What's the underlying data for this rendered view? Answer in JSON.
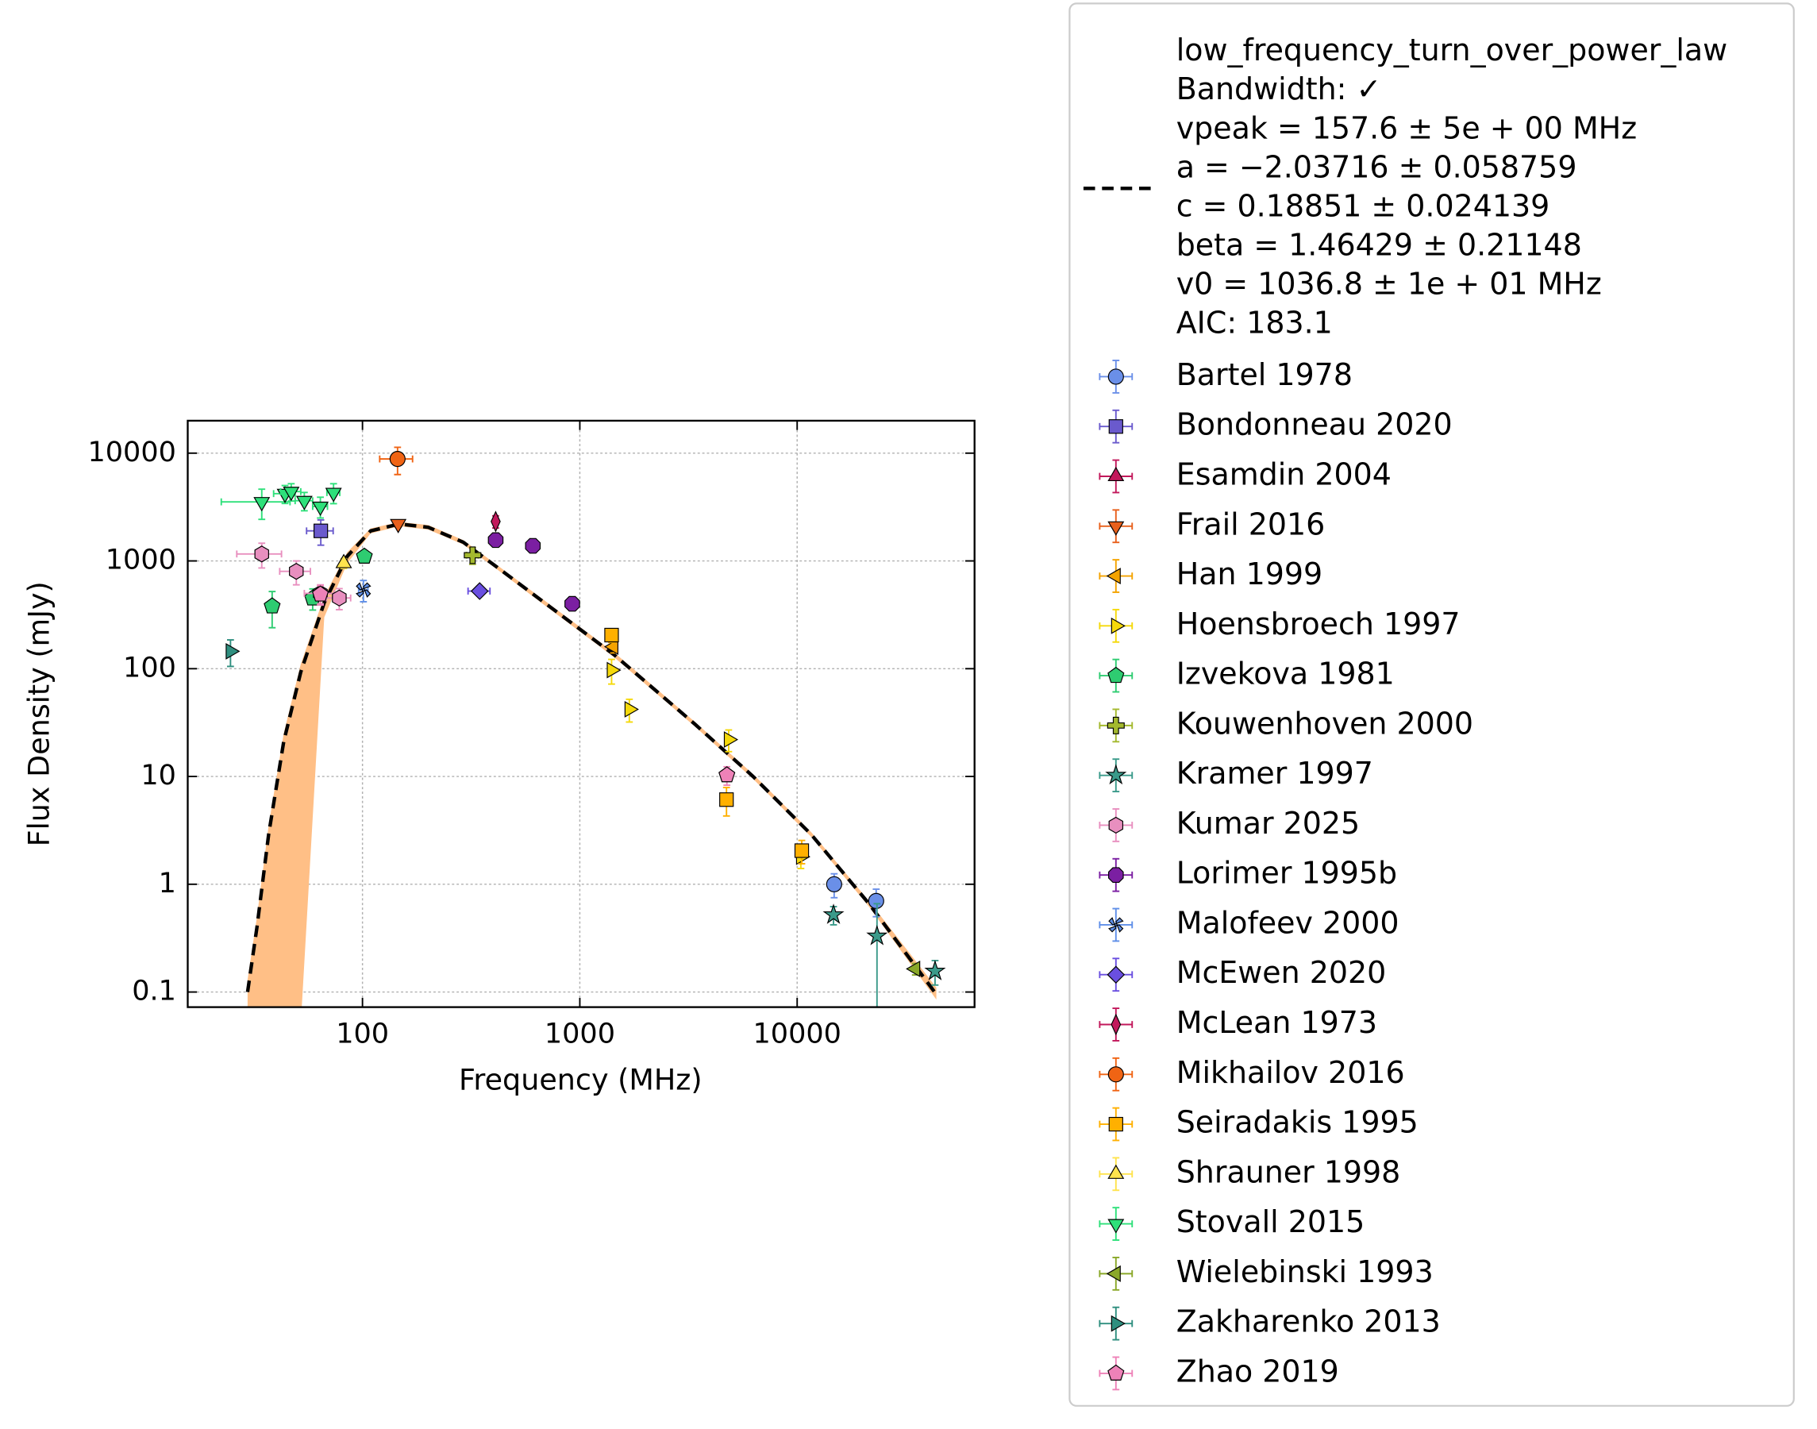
{
  "chart_data": {
    "type": "scatter",
    "xlabel": "Frequency (MHz)",
    "ylabel": "Flux Density (mJy)",
    "xscale": "log",
    "yscale": "log",
    "xlim": [
      15.7,
      65500
    ],
    "ylim": [
      0.0724,
      20000
    ],
    "xticks": [
      100,
      1000,
      10000
    ],
    "yticks": [
      0.1,
      1,
      10,
      100,
      1000,
      10000
    ],
    "grid": true,
    "legend_position": "outside right",
    "fit": {
      "label_lines": [
        "low_frequency_turn_over_power_law",
        "Bandwidth: ✓",
        "vpeak = 157.6 ± 5e + 00 MHz",
        "a = −2.03716 ± 0.058759",
        "c = 0.18851 ± 0.024139",
        "beta = 1.46429 ± 0.21148",
        "v0 = 1036.8 ± 1e + 01 MHz",
        "AIC: 183.1"
      ],
      "color": "#000000",
      "band_color": "#ffbf86",
      "x": [
        29.6,
        32.7,
        37,
        43.4,
        52,
        66.7,
        85,
        109,
        148,
        201,
        291,
        421,
        687,
        1436,
        3390,
        6270,
        11600,
        21400,
        43700
      ],
      "values": [
        0.1,
        0.4,
        2.9,
        21,
        93,
        410,
        1100,
        1900,
        2200,
        2050,
        1490,
        860,
        410,
        135,
        30.5,
        10,
        2.9,
        0.66,
        0.095
      ],
      "band_lower": [
        0.01,
        0.01,
        0.01,
        0.01,
        0.05,
        300,
        950,
        1800,
        2100,
        1950,
        1420,
        820,
        390,
        128,
        29,
        9.5,
        2.75,
        0.62,
        0.085
      ],
      "band_upper": [
        0.13,
        0.5,
        3.5,
        25,
        110,
        470,
        1200,
        2000,
        2300,
        2150,
        1560,
        900,
        430,
        142,
        32,
        10.5,
        3.05,
        0.7,
        0.11
      ]
    },
    "series": [
      {
        "name": "Bartel 1978",
        "color": "#6a8fe8",
        "marker": "circle",
        "x": [
          14800,
          23100
        ],
        "values": [
          1.0,
          0.7
        ],
        "xerr": [
          0,
          0
        ],
        "yerr": [
          0.25,
          0.2
        ]
      },
      {
        "name": "Bondonneau 2020",
        "color": "#6a5acd",
        "marker": "square",
        "x": [
          64.3
        ],
        "values": [
          1900
        ],
        "xerr": [
          9
        ],
        "yerr": [
          500
        ]
      },
      {
        "name": "Esamdin 2004",
        "color": "#c2185b",
        "marker": "triangle-up",
        "x": [],
        "values": [],
        "xerr": [],
        "yerr": []
      },
      {
        "name": "Frail 2016",
        "color": "#e8601c",
        "marker": "triangle-down",
        "x": [
          146
        ],
        "values": [
          2210
        ],
        "xerr": [
          5
        ],
        "yerr": [
          150
        ]
      },
      {
        "name": "Han 1999",
        "color": "#f4a300",
        "marker": "triangle-left",
        "x": [
          1430
        ],
        "values": [
          160
        ],
        "xerr": [
          20
        ],
        "yerr": [
          20
        ]
      },
      {
        "name": "Hoensbroech 1997",
        "color": "#f5d90a",
        "marker": "triangle-right",
        "x": [
          1400,
          1690,
          4840,
          10400
        ],
        "values": [
          97,
          42,
          22,
          1.8
        ],
        "xerr": [
          0,
          0,
          0,
          0
        ],
        "yerr": [
          25,
          10,
          5,
          0.4
        ]
      },
      {
        "name": "Izvekova 1981",
        "color": "#2ecc71",
        "marker": "pentagon",
        "x": [
          38.4,
          59,
          102
        ],
        "values": [
          380,
          450,
          1100
        ],
        "xerr": [
          0,
          0,
          0
        ],
        "yerr": [
          140,
          100,
          100
        ]
      },
      {
        "name": "Kouwenhoven 2000",
        "color": "#a4b92e",
        "marker": "plus",
        "x": [
          321
        ],
        "values": [
          1130
        ],
        "xerr": [
          20
        ],
        "yerr": [
          200
        ]
      },
      {
        "name": "Kramer 1997",
        "color": "#3a9a8a",
        "marker": "star",
        "x": [
          14700,
          23300,
          43100
        ],
        "values": [
          0.52,
          0.33,
          0.156
        ],
        "xerr": [
          0,
          0,
          0
        ],
        "yerr": [
          0.1,
          0.33,
          0.04
        ]
      },
      {
        "name": "Kumar 2025",
        "color": "#e88fbf",
        "marker": "hexagon",
        "x": [
          34.4,
          49.6,
          64,
          78.2
        ],
        "values": [
          1160,
          800,
          500,
          453
        ],
        "xerr": [
          8,
          8,
          10,
          10
        ],
        "yerr": [
          300,
          200,
          100,
          100
        ]
      },
      {
        "name": "Lorimer 1995b",
        "color": "#7b1fa2",
        "marker": "octagon",
        "x": [
          410,
          608,
          923
        ],
        "values": [
          1560,
          1380,
          400
        ],
        "xerr": [
          0,
          0,
          0
        ],
        "yerr": [
          150,
          100,
          40
        ]
      },
      {
        "name": "Malofeev 2000",
        "color": "#5f8fe8",
        "marker": "x",
        "x": [
          101
        ],
        "values": [
          538
        ],
        "xerr": [
          5
        ],
        "yerr": [
          120
        ]
      },
      {
        "name": "McEwen 2020",
        "color": "#6a4fe0",
        "marker": "diamond",
        "x": [
          346
        ],
        "values": [
          525
        ],
        "xerr": [
          40
        ],
        "yerr": [
          50
        ]
      },
      {
        "name": "McLean 1973",
        "color": "#c2185b",
        "marker": "thin-diamond",
        "x": [
          410
        ],
        "values": [
          2320
        ],
        "xerr": [
          0
        ],
        "yerr": [
          300
        ]
      },
      {
        "name": "Mikhailov 2016",
        "color": "#f06414",
        "marker": "circle",
        "x": [
          145
        ],
        "values": [
          8830
        ],
        "xerr": [
          25
        ],
        "yerr": [
          2500
        ]
      },
      {
        "name": "Seiradakis 1995",
        "color": "#ffb000",
        "marker": "square",
        "x": [
          1400,
          4730,
          10500
        ],
        "values": [
          205,
          6.1,
          2.05
        ],
        "xerr": [
          0,
          0,
          0
        ],
        "yerr": [
          30,
          1.8,
          0.5
        ]
      },
      {
        "name": "Shrauner 1998",
        "color": "#ffe34d",
        "marker": "triangle-up",
        "x": [
          82
        ],
        "values": [
          950
        ],
        "xerr": [
          0
        ],
        "yerr": [
          100
        ]
      },
      {
        "name": "Stovall 2015",
        "color": "#2ee07a",
        "marker": "triangle-down",
        "x": [
          34.4,
          44,
          47,
          54,
          64,
          73.6
        ],
        "values": [
          3530,
          4210,
          4400,
          3620,
          3200,
          4300
        ],
        "xerr": [
          12,
          5,
          5,
          5,
          5,
          5
        ],
        "yerr": [
          1100,
          800,
          800,
          700,
          700,
          900
        ]
      },
      {
        "name": "Wielebinski 1993",
        "color": "#8aa829",
        "marker": "triangle-left",
        "x": [
          35000
        ],
        "values": [
          0.164
        ],
        "xerr": [
          0
        ],
        "yerr": [
          0.02
        ]
      },
      {
        "name": "Zakharenko 2013",
        "color": "#2f8f7f",
        "marker": "triangle-right",
        "x": [
          24.7
        ],
        "values": [
          145
        ],
        "xerr": [
          0
        ],
        "yerr": [
          40
        ]
      },
      {
        "name": "Zhao 2019",
        "color": "#ee82b8",
        "marker": "pentagon",
        "x": [
          64,
          4750
        ],
        "values": [
          490,
          10.3
        ],
        "xerr": [
          0,
          0
        ],
        "yerr": [
          100,
          2
        ]
      }
    ]
  }
}
